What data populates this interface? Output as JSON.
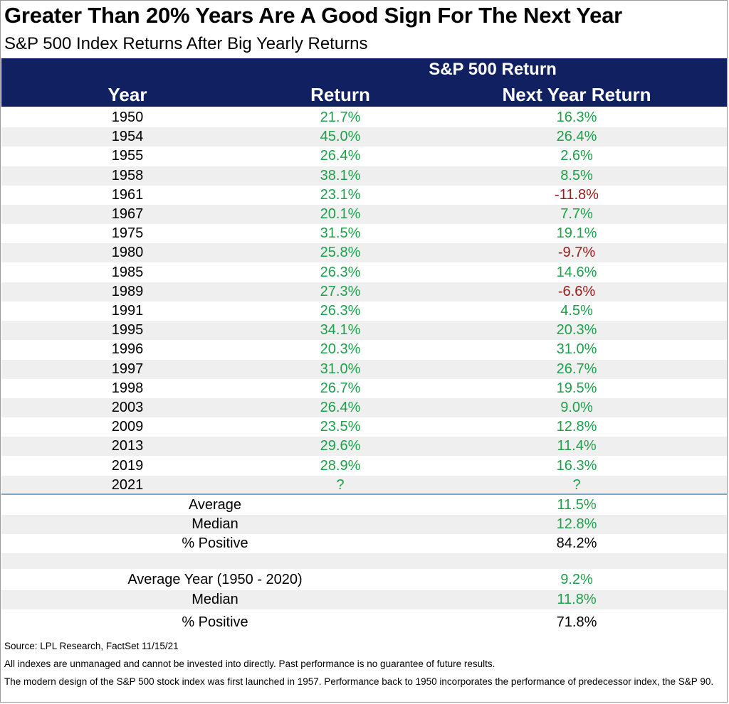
{
  "title": "Greater Than 20% Years Are A Good Sign For The Next Year",
  "subtitle": "S&P 500 Index Returns After Big Yearly Returns",
  "header": {
    "group": "S&P 500 Return",
    "year": "Year",
    "return": "Return",
    "next_year_return": "Next Year Return"
  },
  "colors": {
    "header_bg": "#102060",
    "positive": "#1fa04a",
    "negative": "#9b1b1b",
    "stripe": "#efefef"
  },
  "chart_data": {
    "type": "table",
    "title": "Greater Than 20% Years Are A Good Sign For The Next Year",
    "subtitle": "S&P 500 Index Returns After Big Yearly Returns",
    "columns": [
      "Year",
      "Return",
      "Next Year Return"
    ],
    "rows": [
      {
        "year": "1950",
        "return": "21.7%",
        "next": "16.3%"
      },
      {
        "year": "1954",
        "return": "45.0%",
        "next": "26.4%"
      },
      {
        "year": "1955",
        "return": "26.4%",
        "next": "2.6%"
      },
      {
        "year": "1958",
        "return": "38.1%",
        "next": "8.5%"
      },
      {
        "year": "1961",
        "return": "23.1%",
        "next": "-11.8%"
      },
      {
        "year": "1967",
        "return": "20.1%",
        "next": "7.7%"
      },
      {
        "year": "1975",
        "return": "31.5%",
        "next": "19.1%"
      },
      {
        "year": "1980",
        "return": "25.8%",
        "next": "-9.7%"
      },
      {
        "year": "1985",
        "return": "26.3%",
        "next": "14.6%"
      },
      {
        "year": "1989",
        "return": "27.3%",
        "next": "-6.6%"
      },
      {
        "year": "1991",
        "return": "26.3%",
        "next": "4.5%"
      },
      {
        "year": "1995",
        "return": "34.1%",
        "next": "20.3%"
      },
      {
        "year": "1996",
        "return": "20.3%",
        "next": "31.0%"
      },
      {
        "year": "1997",
        "return": "31.0%",
        "next": "26.7%"
      },
      {
        "year": "1998",
        "return": "26.7%",
        "next": "19.5%"
      },
      {
        "year": "2003",
        "return": "26.4%",
        "next": "9.0%"
      },
      {
        "year": "2009",
        "return": "23.5%",
        "next": "12.8%"
      },
      {
        "year": "2013",
        "return": "29.6%",
        "next": "11.4%"
      },
      {
        "year": "2019",
        "return": "28.9%",
        "next": "16.3%"
      },
      {
        "year": "2021",
        "return": "?",
        "next": "?"
      }
    ],
    "summary": [
      {
        "label": "Average",
        "value": "11.5%"
      },
      {
        "label": "Median",
        "value": "12.8%"
      },
      {
        "label": "% Positive",
        "value": "84.2%"
      }
    ],
    "baseline": [
      {
        "label": "Average Year (1950 - 2020)",
        "value": "9.2%"
      },
      {
        "label": "Median",
        "value": "11.8%"
      },
      {
        "label": "% Positive",
        "value": "71.8%"
      }
    ]
  },
  "notes": {
    "source": "Source: LPL Research, FactSet 11/15/21",
    "disclaimer": "All indexes are unmanaged and cannot be invested into directly. Past performance is no guarantee of future results.",
    "methodology": "The modern design of the S&P 500 stock index was first launched in 1957. Performance back to 1950 incorporates the performance of predecessor index, the S&P 90."
  }
}
